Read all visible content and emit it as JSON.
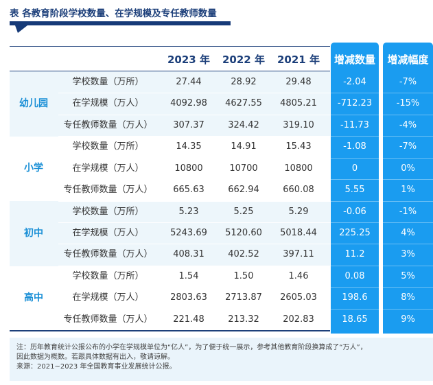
{
  "title": "表 各教育阶段学校数量、在学规模及专任教师数量",
  "headers": [
    "2023 年",
    "2022 年",
    "2021 年",
    "增减数量",
    "增减幅度"
  ],
  "groups": [
    {
      "label": "幼儿园",
      "rows": [
        [
          "学校数量（万所）",
          "27.44",
          "28.92",
          "29.48",
          "-2.04",
          "-7%"
        ],
        [
          "在学规模（万人）",
          "4092.98",
          "4627.55",
          "4805.21",
          "-712.23",
          "-15%"
        ],
        [
          "专任教师数量（万人）",
          "307.37",
          "324.42",
          "319.10",
          "-11.73",
          "-4%"
        ]
      ]
    },
    {
      "label": "小学",
      "rows": [
        [
          "学校数量（万所）",
          "14.35",
          "14.91",
          "15.43",
          "-1.08",
          "-7%"
        ],
        [
          "在学规模（万人）",
          "10800",
          "10700",
          "10800",
          "0",
          "0%"
        ],
        [
          "专任教师数量（万人）",
          "665.63",
          "662.94",
          "660.08",
          "5.55",
          "1%"
        ]
      ]
    },
    {
      "label": "初中",
      "rows": [
        [
          "学校数量（万所）",
          "5.23",
          "5.25",
          "5.29",
          "-0.06",
          "-1%"
        ],
        [
          "在学规模（万人）",
          "5243.69",
          "5120.60",
          "5018.44",
          "225.25",
          "4%"
        ],
        [
          "专任教师数量（万人）",
          "408.31",
          "402.52",
          "397.11",
          "11.2",
          "3%"
        ]
      ]
    },
    {
      "label": "高中",
      "rows": [
        [
          "学校数量（万所）",
          "1.54",
          "1.50",
          "1.46",
          "0.08",
          "5%"
        ],
        [
          "在学规模（万人）",
          "2803.63",
          "2713.87",
          "2605.03",
          "198.6",
          "8%"
        ],
        [
          "专任教师数量（万人）",
          "221.48",
          "213.32",
          "202.83",
          "18.65",
          "9%"
        ]
      ]
    }
  ],
  "note": [
    "注：历年教育统计公报公布的小学在学规模单位为“亿人”，为了便于统一展示，参考其他教育阶段换算成了“万人”，",
    "因此数据为概数。若跟具体数据有出入，敬请谅解。",
    "来源：2021~2023 年全国教育事业发展统计公报。"
  ],
  "colors": {
    "accent": "#1a9cf0",
    "navy": "#1c3f7a",
    "group_label": "#1a8fd6"
  }
}
